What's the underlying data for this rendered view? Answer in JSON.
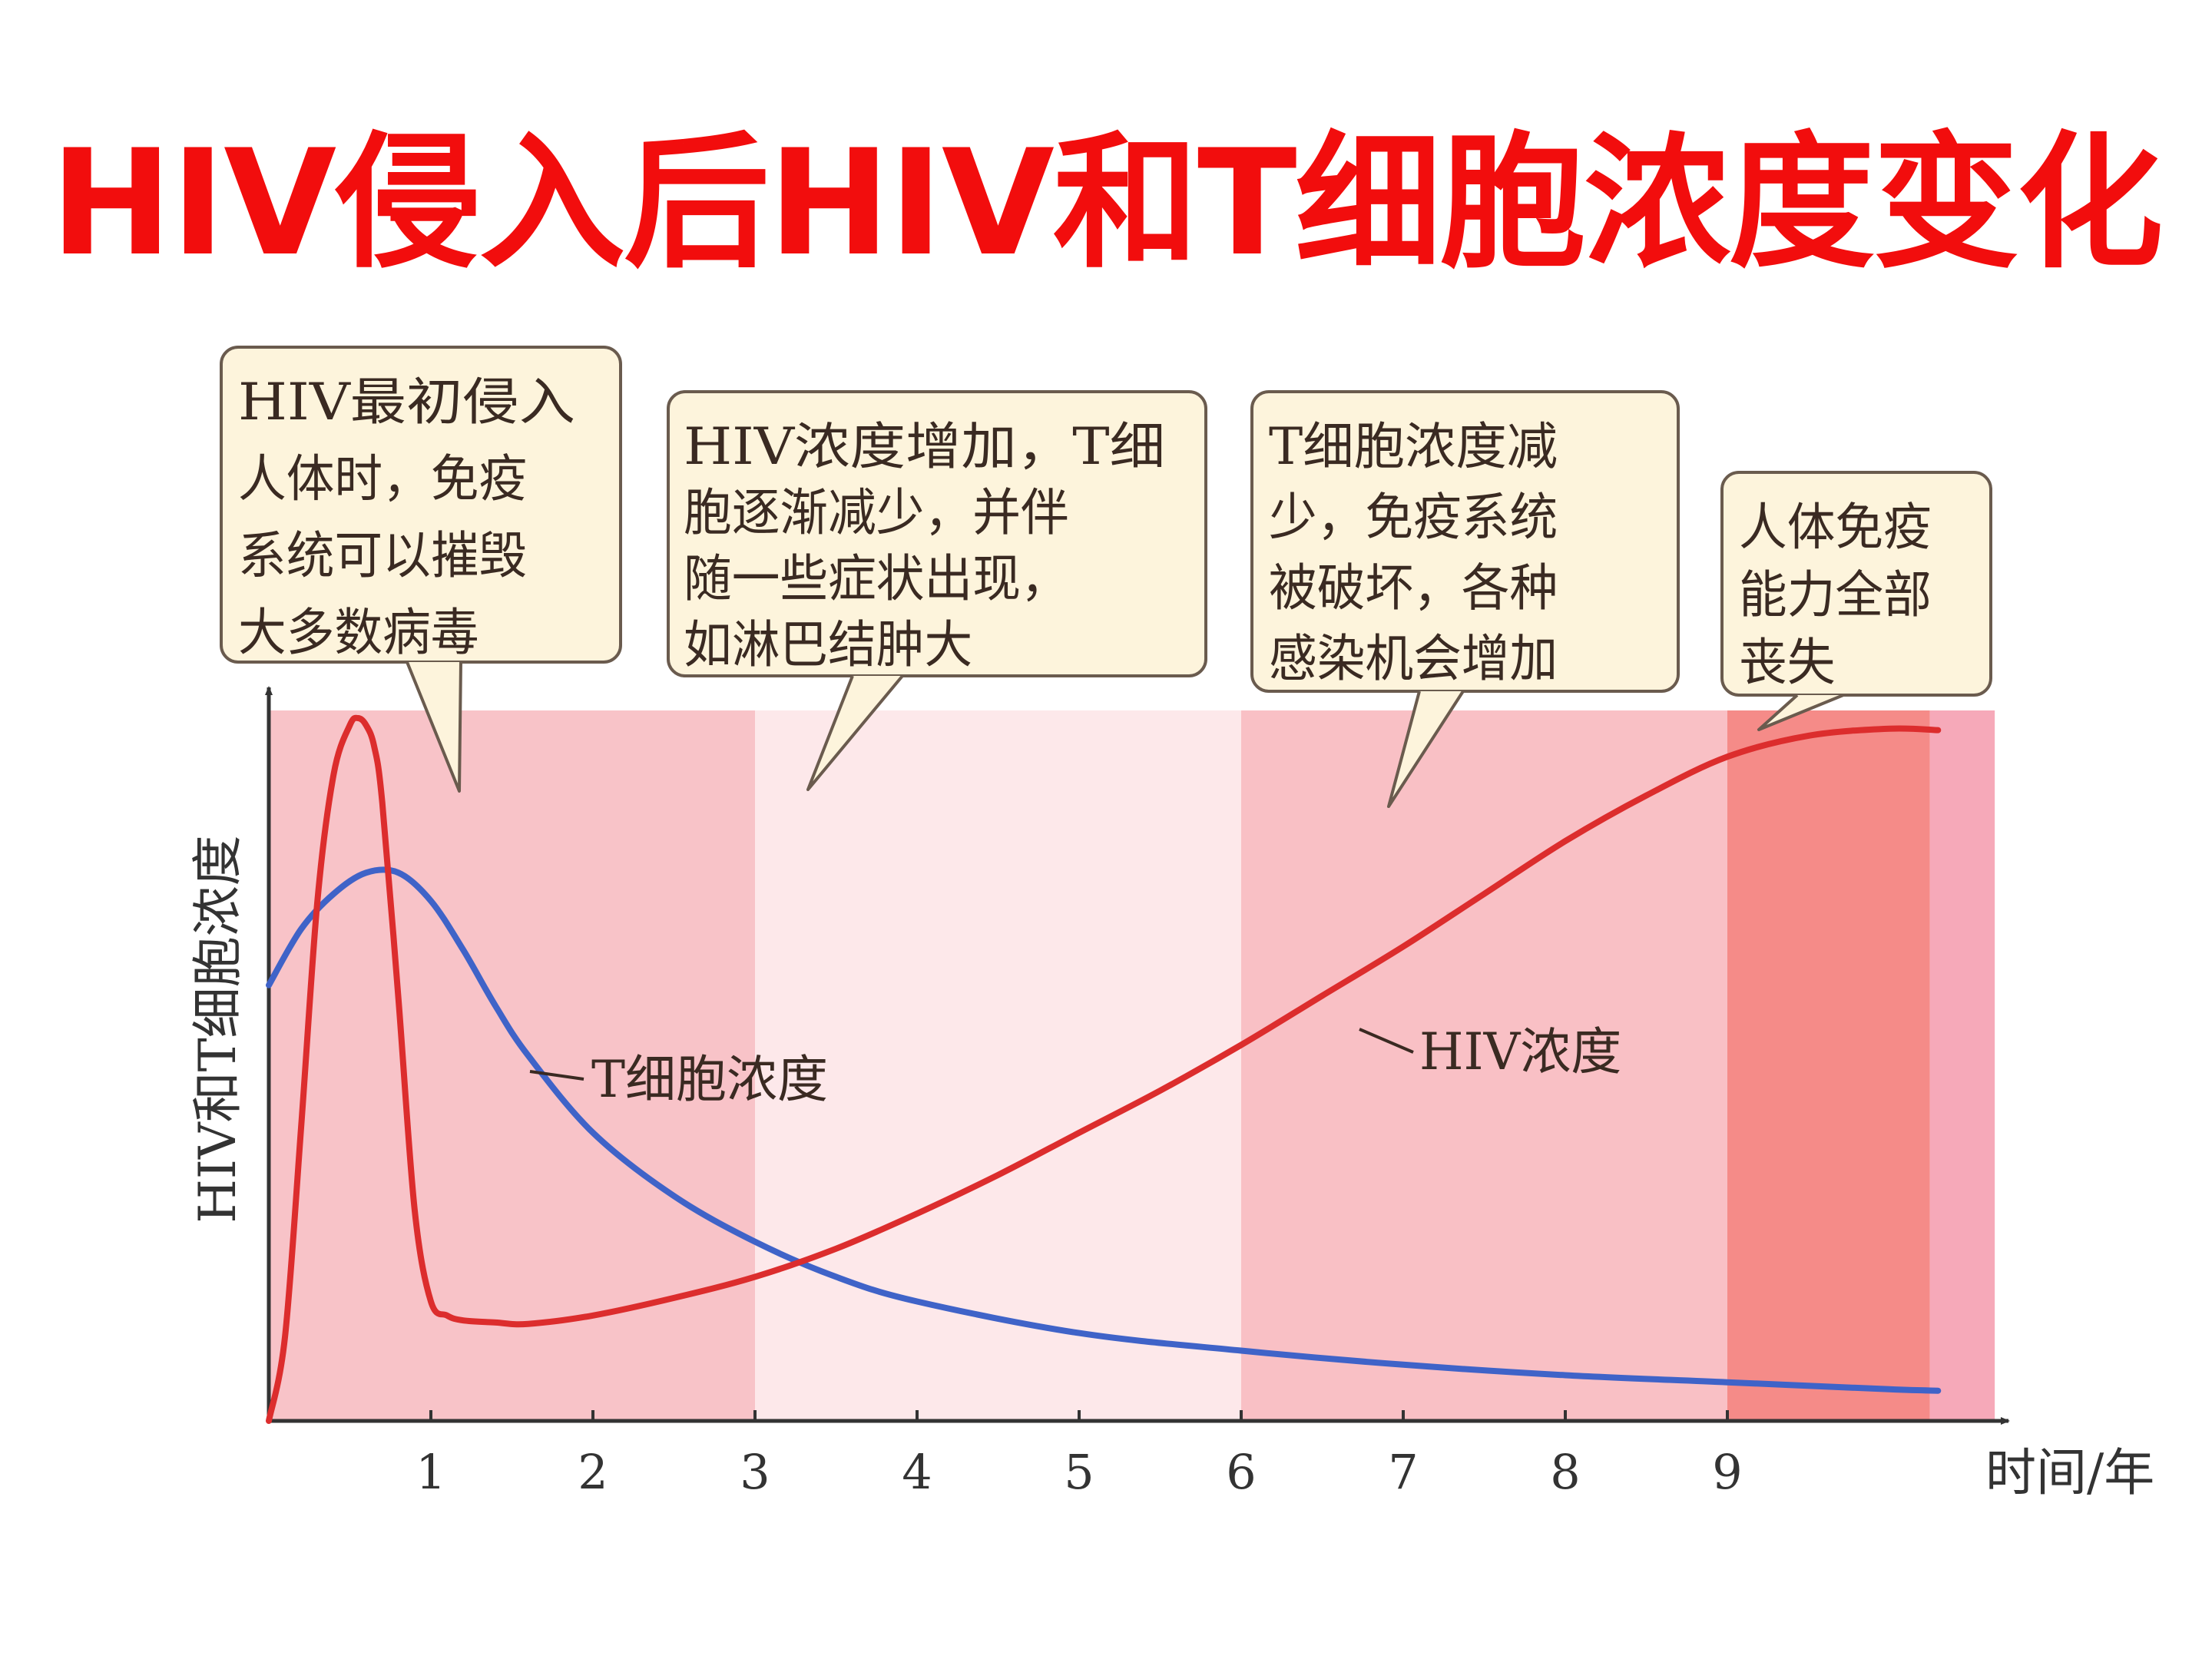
{
  "title": "HIV侵入后HIV和T细胞浓度变化",
  "chart_data": {
    "type": "line",
    "title": "HIV侵入后HIV和T细胞浓度变化",
    "xlabel": "时间/年",
    "ylabel": "HIV和T细胞浓度",
    "xlim": [
      0,
      10.7
    ],
    "ylim": [
      0,
      100
    ],
    "x_ticks": [
      1,
      2,
      3,
      4,
      5,
      6,
      7,
      8,
      9
    ],
    "colors": {
      "hiv": "#dc2d2d",
      "tcell": "#3f63c8"
    },
    "phases": [
      {
        "name": "phase-initial",
        "x0": 0,
        "x1": 3,
        "color": "#f8c3c8"
      },
      {
        "name": "phase-symptoms",
        "x0": 3,
        "x1": 6,
        "color": "#fde8ea"
      },
      {
        "name": "phase-immune-damage",
        "x0": 6,
        "x1": 9,
        "color": "#f9c0c5"
      },
      {
        "name": "phase-immune-loss",
        "x0": 9,
        "x1": 10.25,
        "color": "#f58b88"
      },
      {
        "name": "phase-tail",
        "x0": 10.25,
        "x1": 10.65,
        "color": "#f6a9b9"
      }
    ],
    "series": [
      {
        "name": "HIV浓度",
        "key": "hiv",
        "x": [
          0,
          0.1,
          0.2,
          0.3,
          0.4,
          0.5,
          0.55,
          0.6,
          0.65,
          0.7,
          0.8,
          0.9,
          1.0,
          1.1,
          1.2,
          1.4,
          1.6,
          2.0,
          2.5,
          3.0,
          3.5,
          4.0,
          4.5,
          5.0,
          5.5,
          6.0,
          6.5,
          7.0,
          7.5,
          8.0,
          8.5,
          9.0,
          9.5,
          10.0,
          10.3
        ],
        "y": [
          0,
          12,
          42,
          74,
          92,
          99,
          100,
          99,
          96,
          88,
          60,
          30,
          17,
          15,
          14.3,
          14,
          13.8,
          15,
          17.5,
          20.5,
          24.5,
          29.5,
          35,
          41,
          47,
          53.5,
          60.5,
          67.5,
          75,
          82.5,
          89,
          94.5,
          97.5,
          98.5,
          98.3
        ]
      },
      {
        "name": "T细胞浓度",
        "key": "tcell",
        "x": [
          0,
          0.2,
          0.4,
          0.6,
          0.8,
          1.0,
          1.2,
          1.4,
          1.6,
          2.0,
          2.5,
          3.0,
          3.5,
          4.0,
          5.0,
          6.0,
          7.0,
          8.0,
          9.0,
          10.0,
          10.3
        ],
        "y": [
          62,
          70,
          75,
          78,
          78,
          74,
          67,
          59,
          52,
          41,
          32,
          25.5,
          20.5,
          17,
          12.5,
          10,
          8,
          6.5,
          5.5,
          4.5,
          4.3
        ]
      }
    ],
    "line_labels": [
      {
        "series": "hiv",
        "text": "HIV浓度"
      },
      {
        "series": "tcell",
        "text": "T细胞浓度"
      }
    ],
    "callouts": [
      {
        "name": "callout-initial",
        "lines": [
          "HIV最初侵入",
          "人体时，免疫",
          "系统可以摧毁",
          "大多数病毒"
        ]
      },
      {
        "name": "callout-symptoms",
        "lines": [
          "HIV浓度增加，T细",
          "胞逐渐减少，并伴",
          "随一些症状出现，",
          "如淋巴结肿大"
        ]
      },
      {
        "name": "callout-immune-damage",
        "lines": [
          "T细胞浓度减",
          "少，免疫系统",
          "被破坏，各种",
          "感染机会增加"
        ]
      },
      {
        "name": "callout-immune-loss",
        "lines": [
          "人体免疫",
          "能力全部",
          "丧失"
        ]
      }
    ]
  }
}
